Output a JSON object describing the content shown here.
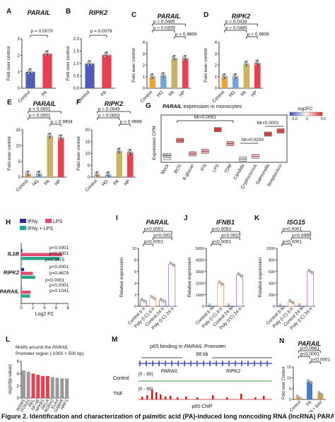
{
  "figure": {
    "caption": "Figure 2. Identification and characterization of palmitic acid (PA)-induced long noncoding RNA (lncRNA) PARAIL"
  },
  "panels": {
    "A": {
      "letter": "A",
      "title": "PARAIL",
      "ylabel": "Fold over control",
      "pval": "p = 0.0079",
      "chart_data": {
        "type": "bar",
        "categories": [
          "Control",
          "PA"
        ],
        "values": [
          1.0,
          2.1
        ],
        "ylim": [
          0,
          3
        ],
        "yticks": [
          "0",
          "1",
          "2",
          "3"
        ],
        "colors": [
          "#4f5bb5",
          "#e8404e"
        ]
      }
    },
    "B": {
      "letter": "B",
      "title": "RIPK2",
      "ylabel": "Fold over control",
      "pval": "p = 0.0079",
      "chart_data": {
        "type": "bar",
        "categories": [
          "Control",
          "PA"
        ],
        "values": [
          1.0,
          1.35
        ],
        "ylim": [
          0,
          2
        ],
        "yticks": [
          "0.0",
          "0.5",
          "1.0",
          "1.5",
          "2.0"
        ],
        "colors": [
          "#4f5bb5",
          "#e8404e"
        ]
      }
    },
    "C": {
      "letter": "C",
      "title": "PARAIL",
      "ylabel": "Fold over control",
      "pvals": [
        "p = 0.0485",
        "p = 0.0309",
        "p > 0.9999"
      ],
      "chart_data": {
        "type": "bar",
        "categories": [
          "Control",
          "HG",
          "PA",
          "HP"
        ],
        "values": [
          1.0,
          1.1,
          2.6,
          2.6
        ],
        "ylim": [
          0,
          4
        ],
        "yticks": [
          "0",
          "1",
          "2",
          "3",
          "4"
        ],
        "colors": [
          "#f4a233",
          "#6fa8dc",
          "#c8b460",
          "#e8404e"
        ]
      }
    },
    "D": {
      "letter": "D",
      "title": "RIPK2",
      "ylabel": "Fold over control",
      "pvals": [
        "p = 0.0418",
        "p = 0.0485",
        "p > 0.9999"
      ],
      "chart_data": {
        "type": "bar",
        "categories": [
          "Control",
          "HG",
          "PA",
          "HP"
        ],
        "values": [
          1.0,
          1.0,
          2.1,
          2.2
        ],
        "ylim": [
          0,
          4
        ],
        "yticks": [
          "0",
          "1",
          "2",
          "3",
          "4"
        ],
        "colors": [
          "#f4a233",
          "#6fa8dc",
          "#c8b460",
          "#e8404e"
        ]
      }
    },
    "E": {
      "letter": "E",
      "title": "PARAIL",
      "ylabel": "Fold over control",
      "pvals": [
        "p < 0.0001",
        "p < 0.0001",
        "p = 0.9904"
      ],
      "chart_data": {
        "type": "bar",
        "categories": [
          "Control",
          "HG",
          "PA",
          "HP"
        ],
        "values": [
          1.0,
          1.0,
          13.0,
          12.5
        ],
        "ylim": [
          0,
          15
        ],
        "yticks": [
          "0",
          "5",
          "10",
          "15"
        ],
        "colors": [
          "#f4a233",
          "#6fa8dc",
          "#c8b460",
          "#e8404e"
        ]
      }
    },
    "F": {
      "letter": "F",
      "title": "RIPK2",
      "ylabel": "Fold over control",
      "pvals": [
        "p = 0.0049",
        "p = 0.0003",
        "p > 0.9999"
      ],
      "chart_data": {
        "type": "bar",
        "categories": [
          "Control",
          "HG",
          "PA",
          "HP"
        ],
        "values": [
          1.0,
          1.0,
          11.0,
          10.5
        ],
        "ylim": [
          0,
          20
        ],
        "yticks": [
          "0",
          "5",
          "10",
          "15",
          "20"
        ],
        "colors": [
          "#f4a233",
          "#6fa8dc",
          "#c8b460",
          "#e8404e"
        ]
      }
    },
    "G": {
      "letter": "G",
      "title_pre": "PARAIL",
      "title_post": " expression in monocytes",
      "ylabel": "Expression CPM",
      "ref": "REF",
      "fdrs": [
        "fdr<0.0001",
        "fdr<0.0001",
        "fdr=0.0200"
      ],
      "legend": {
        "title": "log2FC",
        "ticks": [
          "-5.0",
          "0",
          "5.0"
        ]
      },
      "chart_data": {
        "type": "box",
        "categories": [
          "Mock",
          "BCG",
          "B glucan",
          "IFN",
          "LPS",
          "TDM",
          "Candida",
          "Cryptococcus",
          "Salmonella",
          "Streptococci"
        ],
        "medians": [
          3,
          30,
          9,
          13,
          47,
          25,
          0.5,
          5,
          40,
          45
        ]
      }
    },
    "H": {
      "letter": "H",
      "legend": [
        "IFNγ",
        "LPS",
        "IFNγ + LPS"
      ],
      "genes": [
        "IL1B",
        "RIPK2",
        "PARAIL"
      ],
      "pvals": [
        "p<0.0001",
        "p<0.0001",
        "p=0.3475",
        "p<0.0001",
        "p=0.4679",
        "p<0.0001",
        "p<0.0001",
        "p=0.1041"
      ],
      "xlabel": "Log2 FC",
      "chart_data": {
        "type": "bar",
        "xlim": [
          0,
          8
        ],
        "xticks": [
          "0",
          "2",
          "4",
          "6",
          "8"
        ],
        "categories": [
          "IL1B",
          "RIPK2",
          "PARAIL"
        ],
        "series": [
          {
            "name": "IFNγ",
            "values": [
              0.2,
              0.5,
              0.1
            ]
          },
          {
            "name": "LPS",
            "values": [
              7.0,
              2.0,
              1.6
            ]
          },
          {
            "name": "IFNγ + LPS",
            "values": [
              6.6,
              2.4,
              1.5
            ]
          }
        ]
      }
    },
    "I": {
      "letter": "I",
      "title": "PARAIL",
      "ylabel": "Relative expression",
      "pvals": [
        "p<0.0001",
        "p<0.0001",
        "p<0.0001"
      ],
      "chart_data": {
        "type": "bar",
        "categories": [
          "Control 6 h",
          "Poly (I:C) 6 h",
          "Control 24 h",
          "Poly (I:C) 24 h"
        ],
        "values": [
          1,
          1.5,
          1,
          7.3
        ],
        "ylim": [
          0,
          10
        ],
        "yticks": [
          "0",
          "2",
          "4",
          "6",
          "8",
          "10"
        ]
      }
    },
    "J": {
      "letter": "J",
      "title": "IFNB1",
      "ylabel": "Relative expression",
      "pvals": [
        "p=0.0053",
        "p=0.0023",
        "p<0.0001"
      ],
      "chart_data": {
        "type": "bar",
        "categories": [
          "Control 6 h",
          "Poly (I:C) 6 h",
          "Control 24 h",
          "Poly (I:C) 24 h"
        ],
        "values": [
          1,
          2000,
          1,
          2700
        ],
        "ylim": [
          0,
          5000
        ],
        "yticks": [
          "0",
          "1000",
          "2000",
          "3000",
          "4000",
          "5000"
        ]
      }
    },
    "K": {
      "letter": "K",
      "title": "ISG15",
      "ylabel": "Relative expression",
      "pvals": [
        "p<0.0001",
        "p=0.6999",
        "p<0.0001"
      ],
      "chart_data": {
        "type": "bar",
        "categories": [
          "Control 6 h",
          "Poly (I:C) 6 h",
          "Control 24 h",
          "Poly (I:C) 24 h"
        ],
        "values": [
          1,
          80,
          1,
          600
        ],
        "ylim": [
          0,
          1000
        ],
        "yticks": [
          "0",
          "200",
          "400",
          "600",
          "800",
          "1000"
        ]
      }
    },
    "L": {
      "letter": "L",
      "title_lines": [
        "Motifs around the ",
        "PARAIL",
        "Promoter region (-1000 + 500 bp)"
      ],
      "ylabel": "-log10(p-value)",
      "chart_data": {
        "type": "bar",
        "categories": [
          "INSM1",
          "FOXA1",
          "REL",
          "NF-κB",
          "NFKB1",
          "RELA",
          "RORA2",
          "ELK4",
          "GABPA",
          "NRF1"
        ],
        "values": [
          4.5,
          4.3,
          4.0,
          3.8,
          3.6,
          3.6,
          3.4,
          3.3,
          3.2,
          3.2
        ],
        "ylim": [
          0,
          6
        ],
        "yticks": [
          "0",
          "2",
          "4",
          "6"
        ],
        "highlight": "#e8404e",
        "base": "#999999"
      }
    },
    "M": {
      "letter": "M",
      "title_pre": "p65 binding in ",
      "title_em": "PARAIL",
      "title_post": " Promoter",
      "scale": "88 kb",
      "gene1": "PARAIL",
      "gene2": "RIPK2",
      "track1": "Control",
      "track2": "TNF",
      "range1": "[0 - 80]",
      "range2": "[0 - 80]",
      "chip": "p65 ChIP"
    },
    "N": {
      "letter": "N",
      "title": "PARAIL",
      "ylabel": "Fold over Control",
      "pvals": [
        "p=0.0661",
        "p<0.0001",
        "p<0.0001"
      ],
      "chart_data": {
        "type": "bar",
        "categories": [
          "Control",
          "PA",
          "PA + BAY"
        ],
        "values": [
          1,
          8.3,
          2.8
        ],
        "ylim": [
          0,
          15
        ],
        "yticks": [
          "0",
          "5",
          "10",
          "15"
        ],
        "colors": [
          "#f4a233",
          "#4a7cc4",
          "#c8a24a"
        ]
      }
    }
  }
}
